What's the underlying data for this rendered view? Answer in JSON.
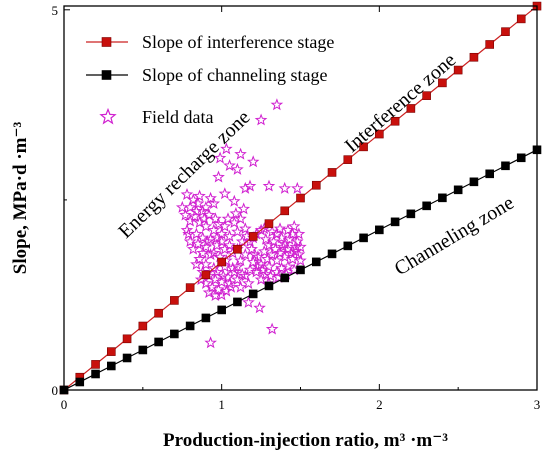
{
  "chart_data": {
    "type": "scatter",
    "xlabel": "Production-injection ratio, m³ ·m⁻³",
    "ylabel": "Slope, MPa·d ·m⁻³",
    "xlim": [
      0,
      3
    ],
    "ylim": [
      0,
      5.05
    ],
    "x_ticks": [
      "0",
      "1",
      "2",
      "3"
    ],
    "y_ticks": [
      "0",
      "5"
    ],
    "grid": false,
    "legend_position": "top-left",
    "series": [
      {
        "name": "Slope of interference stage",
        "kind": "line-square",
        "color": "#cc2020",
        "marker_fill": "#c8100c",
        "slope": 1.683,
        "x": [
          0.0,
          0.1,
          0.2,
          0.3,
          0.4,
          0.5,
          0.6,
          0.7,
          0.8,
          0.9,
          1.0,
          1.1,
          1.2,
          1.3,
          1.4,
          1.5,
          1.6,
          1.7,
          1.8,
          1.9,
          2.0,
          2.1,
          2.2,
          2.3,
          2.4,
          2.5,
          2.6,
          2.7,
          2.8,
          2.9,
          3.0
        ]
      },
      {
        "name": "Slope of channeling stage",
        "kind": "line-square",
        "color": "#000000",
        "marker_fill": "#000000",
        "slope": 1.053,
        "x": [
          0.0,
          0.1,
          0.2,
          0.3,
          0.4,
          0.5,
          0.6,
          0.7,
          0.8,
          0.9,
          1.0,
          1.1,
          1.2,
          1.3,
          1.4,
          1.5,
          1.6,
          1.7,
          1.8,
          1.9,
          2.0,
          2.1,
          2.2,
          2.3,
          2.4,
          2.5,
          2.6,
          2.7,
          2.8,
          2.9,
          3.0
        ]
      },
      {
        "name": "Field data",
        "kind": "star",
        "color": "#d020d0",
        "points": [
          [
            1.35,
            3.75
          ],
          [
            1.25,
            3.55
          ],
          [
            1.12,
            3.1
          ],
          [
            1.03,
            3.17
          ],
          [
            0.99,
            3.05
          ],
          [
            1.05,
            2.95
          ],
          [
            1.1,
            2.9
          ],
          [
            1.2,
            3.0
          ],
          [
            0.98,
            2.8
          ],
          [
            1.15,
            2.65
          ],
          [
            1.4,
            2.65
          ],
          [
            1.48,
            2.65
          ],
          [
            1.18,
            2.68
          ],
          [
            1.02,
            2.58
          ],
          [
            1.3,
            2.68
          ],
          [
            1.08,
            2.48
          ],
          [
            0.78,
            2.57
          ],
          [
            0.82,
            2.5
          ],
          [
            0.85,
            2.45
          ],
          [
            0.9,
            2.4
          ],
          [
            0.95,
            2.45
          ],
          [
            0.8,
            2.4
          ],
          [
            0.88,
            2.35
          ],
          [
            0.92,
            2.3
          ],
          [
            0.77,
            2.3
          ],
          [
            0.83,
            2.28
          ],
          [
            0.96,
            2.25
          ],
          [
            0.8,
            2.22
          ],
          [
            0.86,
            2.2
          ],
          [
            0.9,
            2.15
          ],
          [
            0.95,
            2.1
          ],
          [
            0.78,
            2.1
          ],
          [
            0.84,
            2.05
          ],
          [
            0.88,
            2.0
          ],
          [
            0.93,
            1.98
          ],
          [
            0.8,
            1.95
          ],
          [
            0.85,
            1.92
          ],
          [
            0.9,
            1.88
          ],
          [
            0.97,
            1.9
          ],
          [
            0.82,
            1.85
          ],
          [
            0.88,
            1.8
          ],
          [
            0.93,
            1.78
          ],
          [
            0.86,
            1.72
          ],
          [
            0.9,
            1.65
          ],
          [
            0.95,
            1.6
          ],
          [
            0.88,
            1.55
          ],
          [
            0.92,
            1.5
          ],
          [
            0.96,
            1.45
          ],
          [
            0.9,
            1.4
          ],
          [
            0.94,
            1.35
          ],
          [
            0.98,
            1.32
          ],
          [
            0.92,
            1.28
          ],
          [
            0.96,
            1.24
          ],
          [
            1.0,
            1.25
          ],
          [
            1.03,
            1.3
          ],
          [
            1.06,
            1.35
          ],
          [
            1.0,
            1.42
          ],
          [
            1.04,
            1.48
          ],
          [
            1.08,
            1.55
          ],
          [
            1.1,
            1.62
          ],
          [
            1.12,
            1.7
          ],
          [
            1.15,
            1.78
          ],
          [
            1.1,
            1.85
          ],
          [
            1.05,
            1.9
          ],
          [
            1.0,
            1.95
          ],
          [
            1.05,
            2.02
          ],
          [
            1.1,
            2.08
          ],
          [
            1.15,
            2.12
          ],
          [
            1.02,
            2.15
          ],
          [
            1.08,
            2.2
          ],
          [
            1.12,
            2.25
          ],
          [
            1.18,
            1.95
          ],
          [
            1.2,
            2.0
          ],
          [
            1.22,
            2.05
          ],
          [
            1.25,
            2.1
          ],
          [
            1.28,
            1.98
          ],
          [
            1.3,
            1.9
          ],
          [
            1.33,
            1.95
          ],
          [
            1.35,
            2.05
          ],
          [
            1.38,
            2.0
          ],
          [
            1.4,
            1.92
          ],
          [
            1.43,
            1.98
          ],
          [
            1.45,
            2.05
          ],
          [
            1.48,
            1.95
          ],
          [
            1.5,
            1.88
          ],
          [
            1.47,
            1.82
          ],
          [
            1.42,
            1.85
          ],
          [
            1.37,
            1.8
          ],
          [
            1.32,
            1.78
          ],
          [
            1.27,
            1.82
          ],
          [
            1.23,
            1.75
          ],
          [
            1.2,
            1.68
          ],
          [
            1.25,
            1.65
          ],
          [
            1.3,
            1.62
          ],
          [
            1.35,
            1.7
          ],
          [
            1.4,
            1.75
          ],
          [
            1.45,
            1.72
          ],
          [
            1.5,
            1.7
          ],
          [
            1.18,
            1.58
          ],
          [
            1.22,
            1.55
          ],
          [
            1.28,
            1.52
          ],
          [
            1.15,
            1.5
          ],
          [
            1.1,
            1.45
          ],
          [
            1.05,
            1.4
          ],
          [
            1.25,
            1.45
          ],
          [
            1.3,
            1.4
          ],
          [
            1.17,
            1.4
          ],
          [
            1.12,
            1.35
          ],
          [
            1.35,
            1.55
          ],
          [
            1.38,
            1.6
          ],
          [
            1.42,
            1.62
          ],
          [
            1.0,
            2.05
          ],
          [
            0.97,
            2.0
          ],
          [
            1.02,
            1.85
          ],
          [
            1.07,
            1.8
          ],
          [
            1.03,
            1.7
          ],
          [
            0.99,
            1.75
          ],
          [
            0.95,
            1.8
          ],
          [
            1.13,
            1.95
          ],
          [
            1.16,
            2.02
          ],
          [
            1.27,
            2.12
          ],
          [
            1.32,
            2.08
          ],
          [
            1.37,
            2.12
          ],
          [
            1.42,
            2.1
          ],
          [
            1.46,
            2.15
          ],
          [
            1.49,
            2.05
          ],
          [
            0.75,
            2.4
          ],
          [
            0.79,
            2.05
          ],
          [
            0.84,
            1.65
          ],
          [
            0.87,
            1.45
          ],
          [
            1.24,
            1.08
          ],
          [
            1.32,
            0.8
          ],
          [
            0.93,
            0.62
          ],
          [
            1.17,
            1.15
          ],
          [
            1.07,
            1.6
          ],
          [
            1.13,
            1.52
          ],
          [
            0.97,
            1.55
          ],
          [
            1.02,
            1.62
          ],
          [
            1.19,
            1.85
          ],
          [
            1.21,
            1.78
          ],
          [
            1.29,
            1.72
          ],
          [
            1.34,
            1.85
          ],
          [
            1.39,
            1.88
          ],
          [
            1.44,
            1.8
          ],
          [
            1.47,
            1.88
          ],
          [
            1.49,
            1.78
          ],
          [
            0.98,
            2.18
          ],
          [
            1.04,
            2.25
          ],
          [
            1.09,
            2.32
          ],
          [
            1.14,
            2.38
          ],
          [
            0.86,
            2.55
          ],
          [
            0.93,
            2.52
          ],
          [
            1.23,
            1.62
          ],
          [
            1.26,
            1.58
          ],
          [
            1.31,
            1.5
          ],
          [
            1.36,
            1.48
          ],
          [
            1.41,
            1.52
          ],
          [
            1.46,
            1.58
          ],
          [
            1.01,
            1.5
          ],
          [
            0.91,
            1.95
          ],
          [
            0.84,
            2.35
          ],
          [
            0.89,
            2.25
          ]
        ]
      }
    ],
    "annotations": [
      {
        "text": "Energy recharge zone",
        "x": 0.77,
        "y": 2.82,
        "rotate": -44
      },
      {
        "text": "Interference zone",
        "x": 2.14,
        "y": 3.76,
        "rotate": -41
      },
      {
        "text": "Channeling zone",
        "x": 2.48,
        "y": 2.01,
        "rotate": -31
      }
    ]
  }
}
